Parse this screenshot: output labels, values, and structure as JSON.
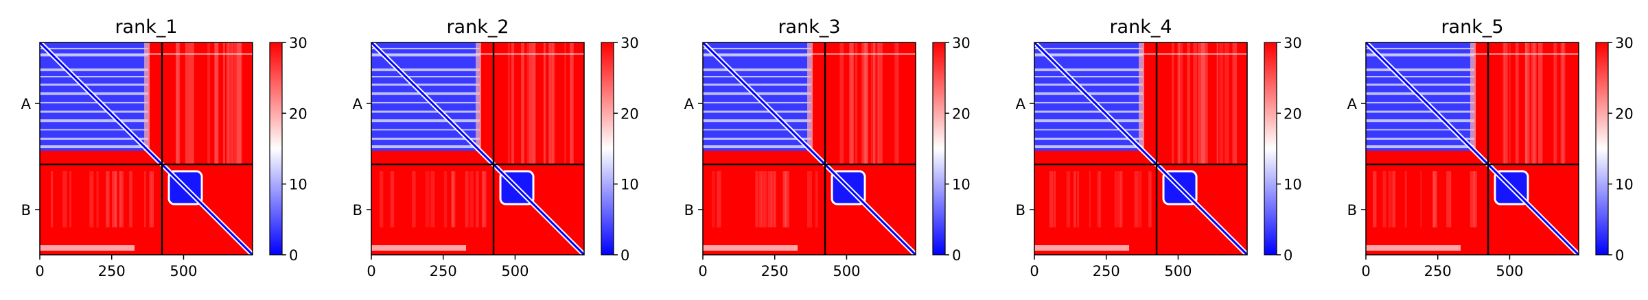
{
  "chart_data": [
    {
      "type": "heatmap",
      "title": "rank_1",
      "x_ticks": [
        0,
        250,
        500
      ],
      "x_range": [
        0,
        740
      ],
      "y_ticks": [
        "A",
        "B"
      ],
      "chain_boundary": 425,
      "chains": [
        {
          "name": "A",
          "start": 0,
          "end": 425
        },
        {
          "name": "B",
          "start": 425,
          "end": 740
        }
      ],
      "colorbar": {
        "min": 0,
        "max": 30,
        "ticks": [
          0,
          10,
          20,
          30
        ],
        "colormap": "bwr"
      }
    },
    {
      "type": "heatmap",
      "title": "rank_2",
      "x_ticks": [
        0,
        250,
        500
      ],
      "x_range": [
        0,
        740
      ],
      "y_ticks": [
        "A",
        "B"
      ],
      "chain_boundary": 425,
      "chains": [
        {
          "name": "A",
          "start": 0,
          "end": 425
        },
        {
          "name": "B",
          "start": 425,
          "end": 740
        }
      ],
      "colorbar": {
        "min": 0,
        "max": 30,
        "ticks": [
          0,
          10,
          20,
          30
        ],
        "colormap": "bwr"
      }
    },
    {
      "type": "heatmap",
      "title": "rank_3",
      "x_ticks": [
        0,
        250,
        500
      ],
      "x_range": [
        0,
        740
      ],
      "y_ticks": [
        "A",
        "B"
      ],
      "chain_boundary": 425,
      "chains": [
        {
          "name": "A",
          "start": 0,
          "end": 425
        },
        {
          "name": "B",
          "start": 425,
          "end": 740
        }
      ],
      "colorbar": {
        "min": 0,
        "max": 30,
        "ticks": [
          0,
          10,
          20,
          30
        ],
        "colormap": "bwr"
      }
    },
    {
      "type": "heatmap",
      "title": "rank_4",
      "x_ticks": [
        0,
        250,
        500
      ],
      "x_range": [
        0,
        740
      ],
      "y_ticks": [
        "A",
        "B"
      ],
      "chain_boundary": 425,
      "chains": [
        {
          "name": "A",
          "start": 0,
          "end": 425
        },
        {
          "name": "B",
          "start": 425,
          "end": 740
        }
      ],
      "colorbar": {
        "min": 0,
        "max": 30,
        "ticks": [
          0,
          10,
          20,
          30
        ],
        "colormap": "bwr"
      }
    },
    {
      "type": "heatmap",
      "title": "rank_5",
      "x_ticks": [
        0,
        250,
        500
      ],
      "x_range": [
        0,
        740
      ],
      "y_ticks": [
        "A",
        "B"
      ],
      "chain_boundary": 425,
      "chains": [
        {
          "name": "A",
          "start": 0,
          "end": 425
        },
        {
          "name": "B",
          "start": 425,
          "end": 740
        }
      ],
      "colorbar": {
        "min": 0,
        "max": 30,
        "ticks": [
          0,
          10,
          20,
          30
        ],
        "colormap": "bwr"
      }
    }
  ],
  "colors": {
    "low": "#0000ff",
    "mid": "#ffffff",
    "high": "#ff0000"
  }
}
